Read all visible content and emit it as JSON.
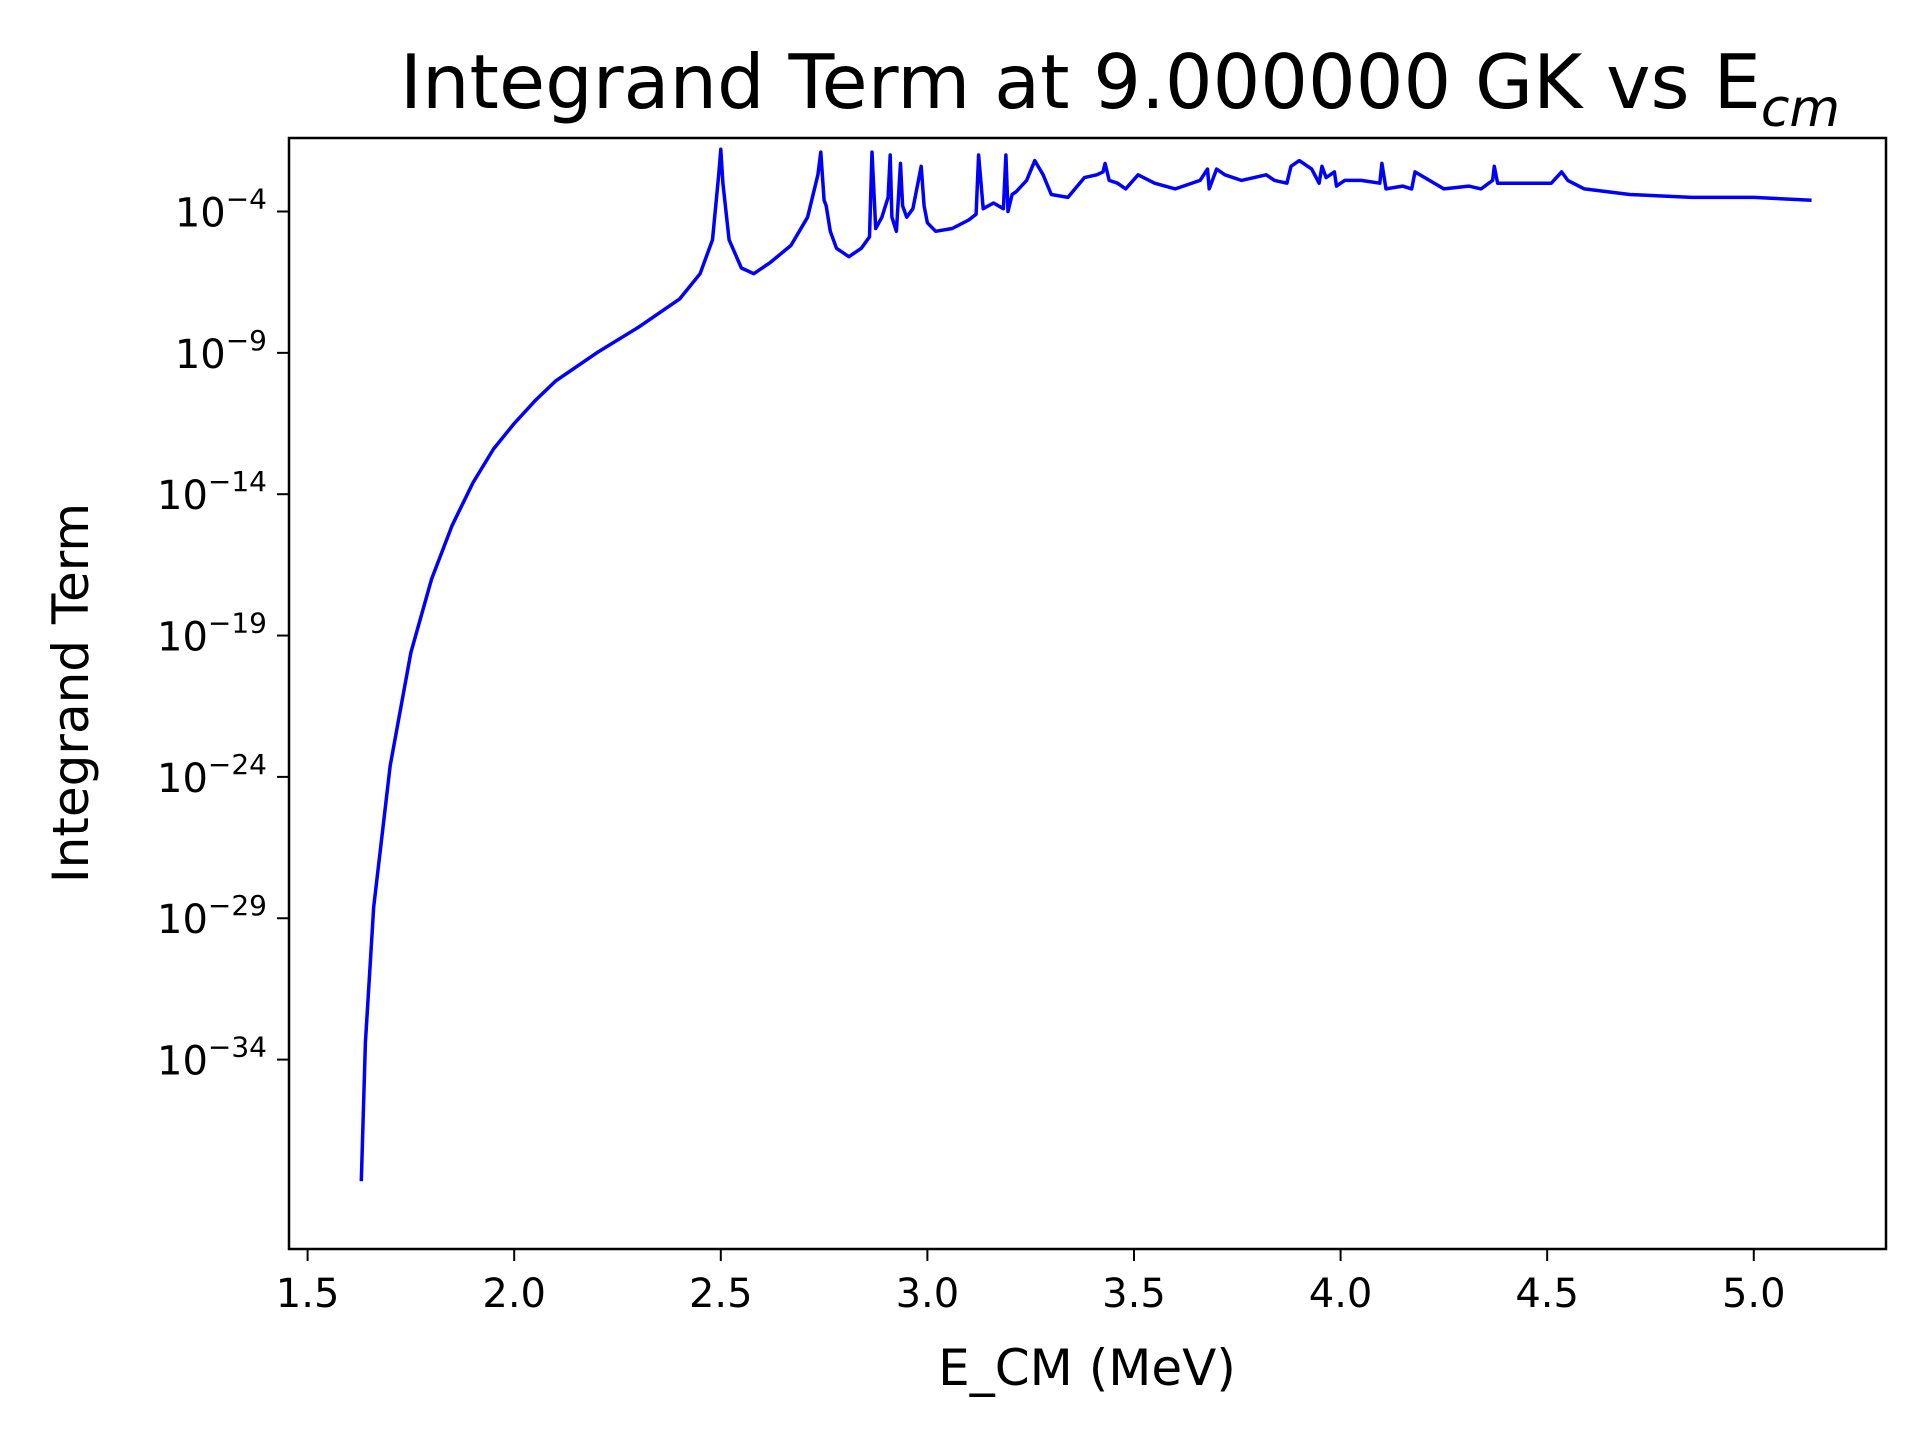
{
  "chart_data": {
    "type": "line",
    "title": "Integrand Term at 9.000000 GK vs E",
    "title_subscript": "cm",
    "xlabel": "E_CM (MeV)",
    "ylabel": "Integrand Term",
    "xlim": [
      1.455,
      5.32
    ],
    "ylim_log10": [
      -40.7,
      -1.4
    ],
    "y_scale": "log",
    "grid": false,
    "x_ticks": [
      1.5,
      2.0,
      2.5,
      3.0,
      3.5,
      4.0,
      4.5,
      5.0
    ],
    "x_tick_labels": [
      "1.5",
      "2.0",
      "2.5",
      "3.0",
      "3.5",
      "4.0",
      "4.5",
      "5.0"
    ],
    "y_ticks_log10": [
      -4,
      -9,
      -14,
      -19,
      -24,
      -29,
      -34
    ],
    "y_tick_labels": [
      {
        "base": "10",
        "exp": "−4"
      },
      {
        "base": "10",
        "exp": "−9"
      },
      {
        "base": "10",
        "exp": "−14"
      },
      {
        "base": "10",
        "exp": "−19"
      },
      {
        "base": "10",
        "exp": "−24"
      },
      {
        "base": "10",
        "exp": "−29"
      },
      {
        "base": "10",
        "exp": "−34"
      }
    ],
    "series": [
      {
        "color": "#0000ff",
        "x": [
          1.63,
          1.64,
          1.66,
          1.7,
          1.75,
          1.8,
          1.85,
          1.9,
          1.95,
          2.0,
          2.05,
          2.1,
          2.2,
          2.3,
          2.4,
          2.45,
          2.48,
          2.495,
          2.5,
          2.505,
          2.52,
          2.55,
          2.58,
          2.62,
          2.67,
          2.71,
          2.735,
          2.742,
          2.75,
          2.755,
          2.765,
          2.78,
          2.81,
          2.84,
          2.86,
          2.866,
          2.875,
          2.89,
          2.905,
          2.91,
          2.914,
          2.925,
          2.935,
          2.94,
          2.95,
          2.965,
          2.985,
          2.992,
          3.0,
          3.02,
          3.06,
          3.1,
          3.118,
          3.124,
          3.135,
          3.16,
          3.184,
          3.19,
          3.195,
          3.205,
          3.215,
          3.24,
          3.26,
          3.28,
          3.3,
          3.34,
          3.38,
          3.41,
          3.425,
          3.43,
          3.44,
          3.46,
          3.48,
          3.51,
          3.55,
          3.6,
          3.66,
          3.678,
          3.682,
          3.7,
          3.72,
          3.76,
          3.82,
          3.84,
          3.87,
          3.88,
          3.9,
          3.93,
          3.948,
          3.955,
          3.965,
          3.985,
          3.99,
          4.01,
          4.05,
          4.095,
          4.1,
          4.11,
          4.15,
          4.172,
          4.18,
          4.25,
          4.31,
          4.34,
          4.368,
          4.372,
          4.38,
          4.45,
          4.51,
          4.535,
          4.55,
          4.59,
          4.7,
          4.85,
          5.0,
          5.14
        ],
        "log10_y": [
          -38.3,
          -33.4,
          -28.6,
          -23.6,
          -19.6,
          -17.0,
          -15.1,
          -13.6,
          -12.4,
          -11.5,
          -10.7,
          -10.0,
          -9.0,
          -8.1,
          -7.1,
          -6.2,
          -5.0,
          -2.7,
          -1.8,
          -3.0,
          -5.0,
          -6.0,
          -6.2,
          -5.8,
          -5.2,
          -4.2,
          -2.7,
          -1.9,
          -3.6,
          -3.8,
          -4.7,
          -5.3,
          -5.6,
          -5.3,
          -4.9,
          -1.9,
          -4.6,
          -4.2,
          -3.5,
          -2.0,
          -4.2,
          -4.7,
          -2.3,
          -3.8,
          -4.2,
          -3.9,
          -2.4,
          -3.8,
          -4.4,
          -4.7,
          -4.6,
          -4.3,
          -4.1,
          -2.0,
          -3.9,
          -3.7,
          -3.9,
          -2.0,
          -4.0,
          -3.4,
          -3.3,
          -2.9,
          -2.2,
          -2.7,
          -3.4,
          -3.5,
          -2.8,
          -2.7,
          -2.6,
          -2.3,
          -2.9,
          -3.0,
          -3.2,
          -2.7,
          -3.0,
          -3.2,
          -2.9,
          -2.5,
          -3.2,
          -2.5,
          -2.7,
          -2.9,
          -2.7,
          -2.9,
          -3.0,
          -2.4,
          -2.2,
          -2.5,
          -3.0,
          -2.4,
          -2.8,
          -2.6,
          -3.1,
          -2.9,
          -2.9,
          -3.0,
          -2.3,
          -3.2,
          -3.1,
          -3.2,
          -2.6,
          -3.2,
          -3.1,
          -3.2,
          -2.9,
          -2.4,
          -3.0,
          -3.0,
          -3.0,
          -2.6,
          -2.9,
          -3.2,
          -3.4,
          -3.5,
          -3.5,
          -3.6
        ]
      }
    ]
  }
}
